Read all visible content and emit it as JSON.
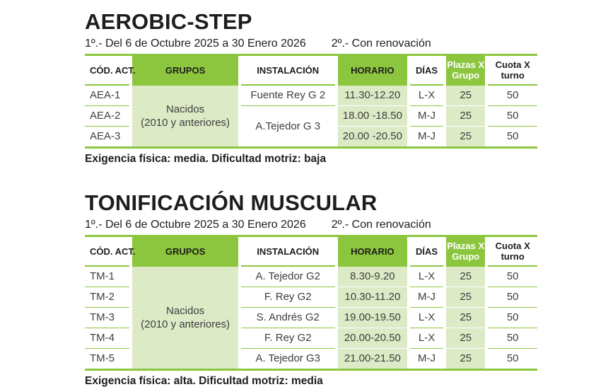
{
  "palette": {
    "accent_green": "#8CC63F",
    "light_green": "#DCEAC6",
    "heading_text": "#1D1D1B",
    "body_text": "#3E3E3D",
    "plazas_header_text": "#FFFFFF"
  },
  "columns": {
    "cod": "CÓD. ACT.",
    "grupos": "GRUPOS",
    "instalacion": "INSTALACIÓN",
    "horario": "HORARIO",
    "dias": "DÍAS",
    "plazas": "Plazas X Grupo",
    "cuota": "Cuota X turno"
  },
  "sections": [
    {
      "title": "AEROBIC-STEP",
      "period_1": "1º.- Del 6 de Octubre 2025 a 30 Enero 2026",
      "period_2": "2º.- Con renovación",
      "grupos": {
        "line1": "Nacidos",
        "line2": "(2010 y anteriores)"
      },
      "rows": [
        {
          "cod": "AEA-1",
          "instalacion": "Fuente Rey G 2",
          "horario": "11.30-12.20",
          "dias": "L-X",
          "plazas": "25",
          "cuota": "50"
        },
        {
          "cod": "AEA-2",
          "instalacion": "A.Tejedor G 3",
          "horario": "18.00 -18.50",
          "dias": "M-J",
          "plazas": "25",
          "cuota": "50"
        },
        {
          "cod": "AEA-3",
          "horario": "20.00 -20.50",
          "dias": "M-J",
          "plazas": "25",
          "cuota": "50"
        }
      ],
      "footer": "Exigencia física: media. Dificultad motriz: baja"
    },
    {
      "title": "TONIFICACIÓN MUSCULAR",
      "period_1": "1º.- Del 6 de Octubre 2025 a 30 Enero 2026",
      "period_2": "2º.- Con renovación",
      "grupos": {
        "line1": "Nacidos",
        "line2": "(2010 y anteriores)"
      },
      "rows": [
        {
          "cod": "TM-1",
          "instalacion": "A. Tejedor G2",
          "horario": "8.30-9.20",
          "dias": "L-X",
          "plazas": "25",
          "cuota": "50"
        },
        {
          "cod": "TM-2",
          "instalacion": "F. Rey G2",
          "horario": "10.30-11.20",
          "dias": "M-J",
          "plazas": "25",
          "cuota": "50"
        },
        {
          "cod": "TM-3",
          "instalacion": "S. Andrés G2",
          "horario": "19.00-19.50",
          "dias": "L-X",
          "plazas": "25",
          "cuota": "50"
        },
        {
          "cod": "TM-4",
          "instalacion": "F. Rey G2",
          "horario": "20.00-20.50",
          "dias": "L-X",
          "plazas": "25",
          "cuota": "50"
        },
        {
          "cod": "TM-5",
          "instalacion": "A. Tejedor G3",
          "horario": "21.00-21.50",
          "dias": "M-J",
          "plazas": "25",
          "cuota": "50"
        }
      ],
      "footer": "Exigencia física: alta. Dificultad motriz: media"
    }
  ]
}
